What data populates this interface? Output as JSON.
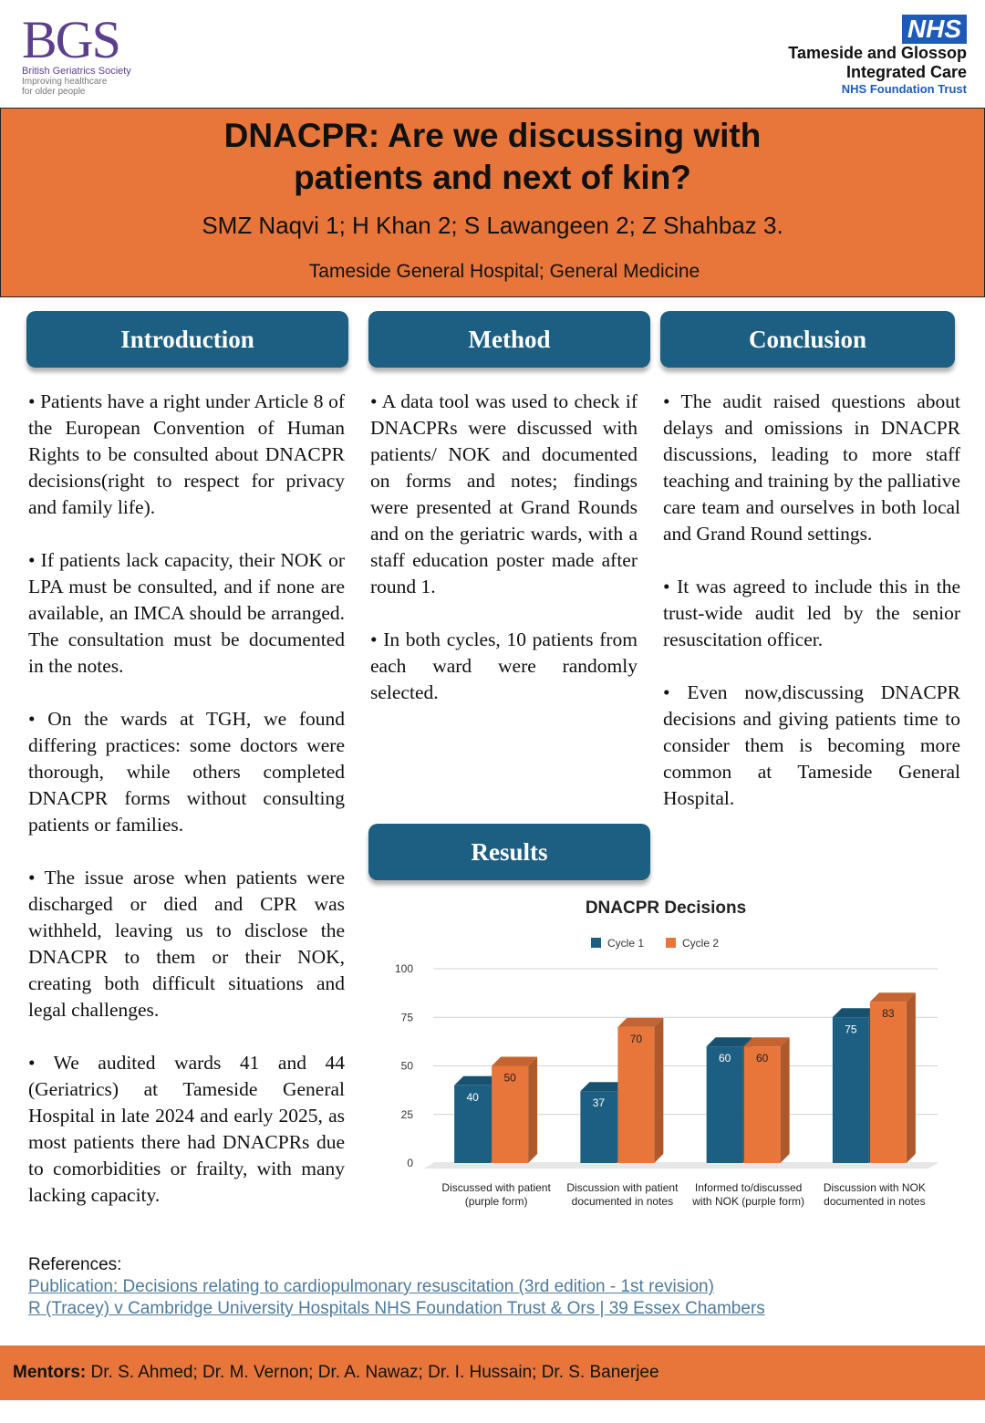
{
  "header": {
    "left_logo": {
      "mark": "BGS",
      "lines": [
        "British Geriatrics Society",
        "Improving healthcare",
        "for older people"
      ]
    },
    "right_logo": {
      "mark": "NHS",
      "lines": [
        "Tameside and Glossop",
        "Integrated Care",
        "NHS Foundation Trust"
      ]
    }
  },
  "banner": {
    "title": [
      "DNACPR: Are we discussing with",
      "patients and next of kin?"
    ],
    "authors": "SMZ Naqvi 1; H Khan 2; S Lawangeen 2; Z Shahbaz 3.",
    "affiliation": "Tameside General Hospital; General Medicine"
  },
  "sections": [
    {
      "heading": "Introduction",
      "paragraphs": [
        "• Patients have a right under Article 8 of the European Convention of Human Rights to be consulted about DNACPR decisions(right to respect for privacy and family life).",
        "• If patients lack capacity, their NOK or LPA must be consulted, and if none are available, an IMCA should be arranged. The consultation must be documented in the notes.",
        "• On the wards at TGH, we found differing practices: some doctors were thorough, while others completed DNACPR forms without consulting patients or families.",
        "• The issue arose when patients were discharged or died and CPR was withheld, leaving us to disclose the DNACPR to them or their NOK, creating both difficult situations and legal challenges.",
        "• We audited wards 41 and 44 (Geriatrics) at Tameside General Hospital in late 2024 and early 2025, as most patients there had DNACPRs due to comorbidities or frailty, with many lacking capacity."
      ]
    },
    {
      "heading": "Method",
      "paragraphs": [
        "• A data tool was used to check if DNACPRs were discussed with patients/ NOK and documented on forms and notes; findings were presented at Grand Rounds and on the geriatric wards, with a staff education poster made after round 1.",
        "• In both cycles, 10 patients from each ward were randomly selected."
      ]
    },
    {
      "heading": "Conclusion",
      "paragraphs": [
        "• The audit raised questions about delays and omissions in DNACPR discussions, leading to more staff teaching and training by the palliative care team and ourselves in both local and Grand Round settings.",
        "• It was agreed to include this in the trust-wide audit led by the senior resuscitation officer.",
        "• Even now,discussing DNACPR decisions and giving patients time to consider them is becoming more common at Tameside General Hospital."
      ]
    },
    {
      "heading": "Results",
      "paragraphs": []
    }
  ],
  "chart_data": {
    "type": "bar",
    "title": "DNACPR Decisions",
    "categories": [
      "Discussed with patient (purple form)",
      "Discussion with patient documented in notes",
      "Informed to/discussed with NOK (purple form)",
      "Discussion with NOK documented in notes"
    ],
    "series": [
      {
        "name": "Cycle 1",
        "color": "#1c5f82",
        "values": [
          40,
          37,
          60,
          75
        ]
      },
      {
        "name": "Cycle 2",
        "color": "#e8763a",
        "values": [
          50,
          70,
          60,
          83
        ]
      }
    ],
    "ylim": [
      0,
      100
    ],
    "yticks": [
      0,
      25,
      50,
      75,
      100
    ],
    "grid": true,
    "legend": "top"
  },
  "references": {
    "label": "References:",
    "links": [
      "Publication: Decisions relating to cardiopulmonary resuscitation (3rd edition - 1st revision)",
      "R (Tracey) v Cambridge University Hospitals NHS Foundation Trust & Ors | 39 Essex Chambers"
    ]
  },
  "footer": {
    "label": "Mentors:",
    "text": "Dr. S. Ahmed; Dr. M. Vernon; Dr. A. Nawaz; Dr. I. Hussain; Dr. S. Banerjee"
  }
}
